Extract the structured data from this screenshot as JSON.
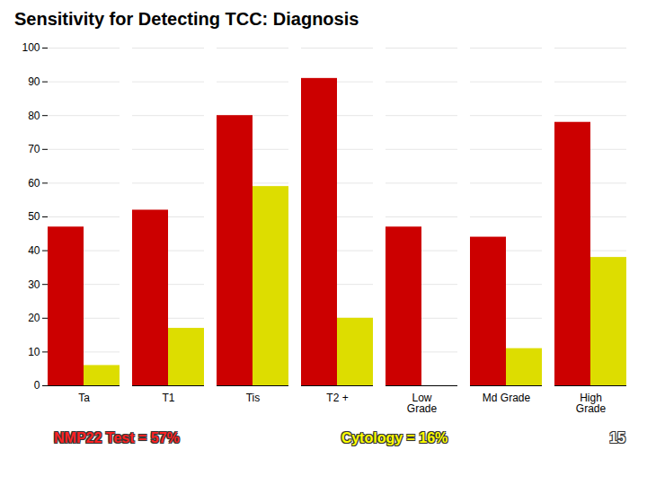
{
  "chart_data": {
    "type": "bar",
    "title": "Sensitivity for Detecting TCC: Diagnosis",
    "categories": [
      "Ta",
      "T1",
      "Tis",
      "T2 +",
      "Low\nGrade",
      "Md Grade",
      "High\nGrade"
    ],
    "series": [
      {
        "color": "#cc0000",
        "values": [
          47,
          52,
          80,
          91,
          47,
          44,
          78
        ]
      },
      {
        "color": "#dddd00",
        "values": [
          6,
          17,
          59,
          20,
          0,
          11,
          38
        ]
      }
    ],
    "ylim": [
      0,
      100
    ],
    "yticks": [
      0,
      10,
      20,
      30,
      40,
      50,
      60,
      70,
      80,
      90,
      100
    ],
    "grid": true,
    "annotations": [
      {
        "text": "NMP22 Test = 57%",
        "color": "#ff2222"
      },
      {
        "text": "Cytology = 16%",
        "color": "#ffff00"
      },
      {
        "text": "15",
        "color": "#ffffff"
      }
    ]
  }
}
